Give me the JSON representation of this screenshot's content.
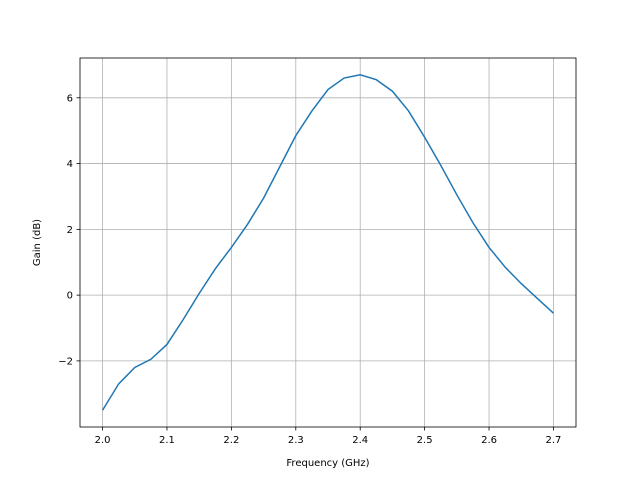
{
  "chart_data": {
    "type": "line",
    "xlabel": "Frequency (GHz)",
    "ylabel": "Gain (dB)",
    "x": [
      2.0,
      2.025,
      2.05,
      2.075,
      2.1,
      2.125,
      2.15,
      2.175,
      2.2,
      2.225,
      2.25,
      2.275,
      2.3,
      2.325,
      2.35,
      2.375,
      2.4,
      2.425,
      2.45,
      2.475,
      2.5,
      2.525,
      2.55,
      2.575,
      2.6,
      2.625,
      2.65,
      2.675,
      2.7
    ],
    "series": [
      {
        "color": "#1f77b4",
        "values": [
          -3.5,
          -2.7,
          -2.2,
          -1.95,
          -1.5,
          -0.75,
          0.05,
          0.8,
          1.45,
          2.15,
          2.95,
          3.9,
          4.85,
          5.6,
          6.25,
          6.6,
          6.7,
          6.55,
          6.2,
          5.6,
          4.8,
          3.95,
          3.05,
          2.2,
          1.45,
          0.85,
          0.35,
          -0.1,
          -0.55
        ]
      }
    ],
    "xlim": [
      1.965,
      2.735
    ],
    "ylim": [
      -4.01,
      7.21
    ],
    "xticks": [
      {
        "value": 2.0,
        "label": "2.0"
      },
      2.1,
      2.2,
      2.3,
      2.4,
      2.5,
      2.6,
      2.7
    ],
    "yticks": [
      {
        "value": -2,
        "label": "−2"
      },
      0,
      2,
      4,
      6
    ],
    "grid": true
  }
}
